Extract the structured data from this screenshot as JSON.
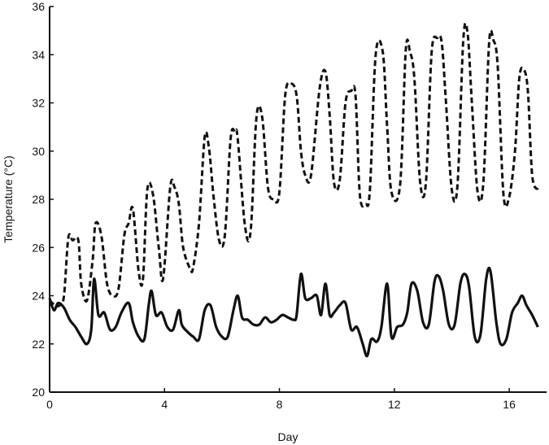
{
  "chart_data": {
    "type": "line",
    "xlabel": "Day",
    "ylabel": "Temperature (°C)",
    "xlim": [
      0,
      17.3
    ],
    "ylim": [
      20,
      36
    ],
    "x_ticks": [
      "0",
      "4",
      "8",
      "12",
      "16"
    ],
    "y_ticks": [
      "20",
      "22",
      "24",
      "26",
      "28",
      "30",
      "32",
      "34",
      "36"
    ],
    "grid": false,
    "legend": "none",
    "series": [
      {
        "style": "dashed",
        "color": "#111111",
        "x": [
          0.0,
          0.2,
          0.35,
          0.5,
          0.65,
          0.8,
          1.0,
          1.1,
          1.3,
          1.5,
          1.6,
          1.8,
          2.0,
          2.2,
          2.4,
          2.6,
          2.75,
          2.9,
          3.1,
          3.25,
          3.4,
          3.6,
          3.8,
          3.95,
          4.2,
          4.35,
          4.5,
          4.65,
          4.9,
          5.0,
          5.2,
          5.4,
          5.55,
          5.7,
          5.9,
          6.1,
          6.3,
          6.45,
          6.55,
          6.8,
          7.0,
          7.2,
          7.4,
          7.6,
          7.8,
          8.0,
          8.2,
          8.4,
          8.6,
          8.75,
          8.9,
          9.1,
          9.4,
          9.6,
          9.75,
          9.9,
          10.1,
          10.3,
          10.5,
          10.65,
          10.8,
          11.0,
          11.15,
          11.35,
          11.6,
          11.75,
          11.9,
          12.2,
          12.4,
          12.55,
          12.7,
          12.9,
          13.1,
          13.3,
          13.5,
          13.65,
          13.8,
          14.0,
          14.2,
          14.4,
          14.55,
          14.7,
          14.9,
          15.1,
          15.3,
          15.45,
          15.6,
          15.8,
          16.0,
          16.2,
          16.35,
          16.5,
          16.65,
          16.8,
          17.0
        ],
        "values": [
          23.8,
          23.6,
          23.6,
          24.0,
          26.4,
          26.3,
          26.3,
          24.5,
          23.8,
          25.5,
          27.0,
          26.5,
          24.5,
          24.0,
          24.3,
          26.5,
          27.0,
          27.6,
          25.0,
          24.7,
          28.4,
          28.2,
          26.0,
          24.7,
          28.5,
          28.5,
          27.8,
          26.0,
          25.1,
          25.2,
          27.0,
          30.6,
          30.1,
          28.2,
          26.3,
          26.5,
          30.5,
          30.8,
          30.5,
          26.9,
          26.7,
          31.4,
          31.4,
          28.5,
          28.0,
          28.3,
          32.3,
          32.8,
          32.3,
          30.0,
          29.0,
          29.0,
          32.6,
          33.3,
          31.5,
          28.7,
          28.8,
          32.0,
          32.5,
          32.3,
          28.2,
          27.8,
          28.4,
          34.0,
          34.1,
          31.0,
          28.3,
          28.6,
          34.2,
          34.1,
          33.0,
          28.7,
          28.7,
          34.1,
          34.7,
          34.5,
          32.0,
          28.4,
          28.6,
          34.6,
          34.9,
          32.0,
          28.3,
          28.7,
          34.5,
          34.6,
          33.5,
          28.2,
          28.1,
          30.0,
          33.0,
          33.4,
          32.5,
          29.0,
          28.4
        ]
      },
      {
        "style": "solid",
        "color": "#111111",
        "x": [
          0.0,
          0.15,
          0.3,
          0.5,
          0.7,
          0.9,
          1.1,
          1.3,
          1.45,
          1.55,
          1.7,
          1.9,
          2.1,
          2.3,
          2.5,
          2.75,
          2.9,
          3.1,
          3.3,
          3.45,
          3.55,
          3.7,
          3.9,
          4.1,
          4.3,
          4.5,
          4.6,
          4.8,
          5.0,
          5.2,
          5.4,
          5.6,
          5.8,
          6.0,
          6.2,
          6.4,
          6.55,
          6.7,
          6.9,
          7.1,
          7.3,
          7.5,
          7.7,
          7.9,
          8.1,
          8.3,
          8.5,
          8.6,
          8.75,
          8.9,
          9.1,
          9.3,
          9.45,
          9.6,
          9.75,
          9.9,
          10.1,
          10.3,
          10.5,
          10.7,
          10.9,
          11.05,
          11.2,
          11.4,
          11.55,
          11.75,
          11.9,
          12.1,
          12.3,
          12.45,
          12.6,
          12.8,
          13.0,
          13.2,
          13.4,
          13.55,
          13.7,
          13.9,
          14.1,
          14.3,
          14.45,
          14.6,
          14.8,
          15.0,
          15.2,
          15.35,
          15.55,
          15.7,
          15.9,
          16.1,
          16.3,
          16.45,
          16.6,
          16.8,
          17.0
        ],
        "values": [
          23.9,
          23.4,
          23.7,
          23.5,
          23.0,
          22.7,
          22.3,
          22.0,
          22.6,
          24.7,
          23.2,
          23.3,
          22.6,
          22.7,
          23.3,
          23.7,
          22.9,
          22.3,
          22.2,
          23.6,
          24.2,
          23.2,
          23.3,
          22.7,
          22.6,
          23.4,
          22.8,
          22.5,
          22.3,
          22.2,
          23.4,
          23.6,
          22.7,
          22.3,
          22.3,
          23.4,
          24.0,
          23.1,
          23.0,
          22.8,
          22.8,
          23.1,
          22.9,
          23.0,
          23.2,
          23.1,
          23.0,
          23.2,
          24.9,
          23.9,
          23.9,
          24.0,
          23.2,
          24.5,
          23.2,
          23.3,
          23.6,
          23.7,
          22.6,
          22.7,
          22.0,
          21.5,
          22.2,
          22.1,
          22.7,
          24.5,
          22.3,
          22.7,
          22.8,
          23.3,
          24.5,
          24.2,
          22.9,
          22.8,
          24.6,
          24.8,
          24.2,
          22.8,
          22.8,
          24.5,
          24.9,
          24.4,
          22.3,
          22.4,
          24.7,
          25.0,
          22.9,
          22.0,
          22.2,
          23.3,
          23.7,
          24.0,
          23.6,
          23.2,
          22.7
        ]
      }
    ]
  }
}
